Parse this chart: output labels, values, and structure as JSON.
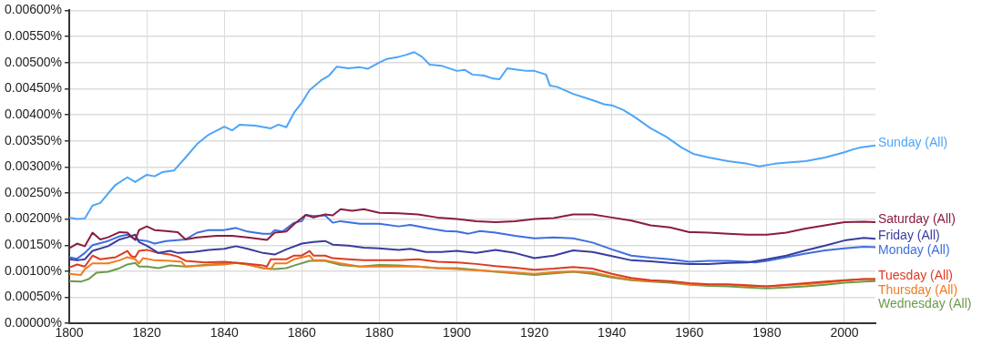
{
  "chart_data": {
    "type": "line",
    "grid": true,
    "legend": false,
    "marker": "none",
    "line_style": "solid",
    "xlim": [
      1800,
      2008
    ],
    "xticks": [
      1800,
      1820,
      1840,
      1860,
      1880,
      1900,
      1920,
      1940,
      1960,
      1980,
      2000
    ],
    "ylim": [
      0,
      0.006
    ],
    "yticks": [
      {
        "value": 0,
        "label": "0.00000%"
      },
      {
        "value": 0.0005,
        "label": "0.00050%"
      },
      {
        "value": 0.001,
        "label": "0.00100%"
      },
      {
        "value": 0.0015,
        "label": "0.00150%"
      },
      {
        "value": 0.002,
        "label": "0.00200%"
      },
      {
        "value": 0.0025,
        "label": "0.00250%"
      },
      {
        "value": 0.003,
        "label": "0.00300%"
      },
      {
        "value": 0.0035,
        "label": "0.00350%"
      },
      {
        "value": 0.004,
        "label": "0.00400%"
      },
      {
        "value": 0.0045,
        "label": "0.00450%"
      },
      {
        "value": 0.005,
        "label": "0.00500%"
      },
      {
        "value": 0.0055,
        "label": "0.00550%"
      },
      {
        "value": 0.006,
        "label": "0.00600%"
      }
    ],
    "series": [
      {
        "name": "Sunday (All)",
        "color": "#4ea5f8",
        "x": [
          1800,
          1802,
          1804,
          1806,
          1808,
          1810,
          1812,
          1815,
          1817,
          1820,
          1822,
          1824,
          1827,
          1830,
          1833,
          1836,
          1840,
          1842,
          1844,
          1848,
          1852,
          1854,
          1856,
          1858,
          1860,
          1862,
          1865,
          1867,
          1869,
          1872,
          1875,
          1877,
          1880,
          1882,
          1885,
          1887,
          1889,
          1891,
          1893,
          1896,
          1900,
          1902,
          1904,
          1907,
          1909,
          1911,
          1913,
          1915,
          1918,
          1920,
          1923,
          1924,
          1926,
          1930,
          1935,
          1938,
          1940,
          1943,
          1946,
          1950,
          1954,
          1958,
          1961,
          1965,
          1970,
          1975,
          1978,
          1982,
          1986,
          1990,
          1995,
          2000,
          2002,
          2004,
          2008
        ],
        "values": [
          0.00203,
          0.002,
          0.00201,
          0.00226,
          0.00231,
          0.00249,
          0.00266,
          0.0028,
          0.00271,
          0.00285,
          0.00282,
          0.0029,
          0.00293,
          0.00318,
          0.00344,
          0.00362,
          0.00377,
          0.0037,
          0.00381,
          0.00379,
          0.00374,
          0.00381,
          0.00376,
          0.00404,
          0.00423,
          0.00447,
          0.00466,
          0.00475,
          0.00492,
          0.00489,
          0.00491,
          0.00488,
          0.005,
          0.00507,
          0.00511,
          0.00515,
          0.0052,
          0.00511,
          0.00496,
          0.00494,
          0.00484,
          0.00486,
          0.00477,
          0.00475,
          0.0047,
          0.00468,
          0.00489,
          0.00487,
          0.00484,
          0.00484,
          0.00477,
          0.00456,
          0.00453,
          0.0044,
          0.00428,
          0.0042,
          0.00418,
          0.00409,
          0.00395,
          0.00374,
          0.00358,
          0.00337,
          0.00325,
          0.00318,
          0.00311,
          0.00306,
          0.00301,
          0.00306,
          0.00309,
          0.00311,
          0.00318,
          0.00328,
          0.00333,
          0.00337,
          0.00341
        ]
      },
      {
        "name": "Saturday (All)",
        "color": "#8a1c3e",
        "x": [
          1800,
          1802,
          1804,
          1806,
          1808,
          1810,
          1813,
          1815,
          1817,
          1818,
          1820,
          1822,
          1825,
          1828,
          1830,
          1833,
          1838,
          1842,
          1846,
          1851,
          1853,
          1856,
          1858,
          1861,
          1863,
          1866,
          1868,
          1870,
          1873,
          1876,
          1880,
          1885,
          1890,
          1895,
          1900,
          1905,
          1910,
          1915,
          1920,
          1925,
          1930,
          1935,
          1940,
          1945,
          1950,
          1955,
          1960,
          1965,
          1970,
          1975,
          1980,
          1985,
          1990,
          1995,
          2000,
          2005,
          2008
        ],
        "values": [
          0.00144,
          0.00153,
          0.00148,
          0.00174,
          0.00161,
          0.00165,
          0.00175,
          0.00174,
          0.0016,
          0.00179,
          0.00186,
          0.00179,
          0.00177,
          0.00175,
          0.00161,
          0.00165,
          0.00168,
          0.00168,
          0.00165,
          0.0016,
          0.00174,
          0.00176,
          0.0019,
          0.00208,
          0.00203,
          0.00209,
          0.00207,
          0.00219,
          0.00216,
          0.00219,
          0.00212,
          0.00211,
          0.00209,
          0.00203,
          0.002,
          0.00196,
          0.00194,
          0.00196,
          0.002,
          0.00202,
          0.00209,
          0.00209,
          0.00203,
          0.00197,
          0.00188,
          0.00184,
          0.00175,
          0.00174,
          0.00172,
          0.0017,
          0.0017,
          0.00174,
          0.00182,
          0.00188,
          0.00194,
          0.00195,
          0.00194
        ]
      },
      {
        "name": "Friday (All)",
        "color": "#3a3c9e",
        "x": [
          1800,
          1802,
          1804,
          1806,
          1810,
          1813,
          1815,
          1817,
          1818,
          1820,
          1823,
          1826,
          1828,
          1832,
          1836,
          1840,
          1843,
          1846,
          1850,
          1853,
          1856,
          1860,
          1863,
          1866,
          1868,
          1872,
          1876,
          1880,
          1885,
          1888,
          1892,
          1896,
          1900,
          1905,
          1910,
          1915,
          1920,
          1925,
          1930,
          1935,
          1940,
          1945,
          1950,
          1955,
          1960,
          1965,
          1970,
          1975,
          1980,
          1985,
          1990,
          1995,
          2000,
          2005,
          2008
        ],
        "values": [
          0.00123,
          0.00121,
          0.00123,
          0.00139,
          0.00148,
          0.00161,
          0.00165,
          0.0017,
          0.00156,
          0.00149,
          0.00135,
          0.00139,
          0.00135,
          0.00137,
          0.00141,
          0.00143,
          0.00148,
          0.00143,
          0.00135,
          0.00132,
          0.00142,
          0.00153,
          0.00156,
          0.00158,
          0.00151,
          0.00149,
          0.00145,
          0.00144,
          0.00141,
          0.00143,
          0.00137,
          0.00137,
          0.00139,
          0.00135,
          0.00141,
          0.00135,
          0.00125,
          0.0013,
          0.0014,
          0.00137,
          0.00129,
          0.00121,
          0.00119,
          0.00116,
          0.00114,
          0.00114,
          0.00116,
          0.00117,
          0.00123,
          0.0013,
          0.0014,
          0.00149,
          0.00159,
          0.00164,
          0.00162
        ]
      },
      {
        "name": "Monday (All)",
        "color": "#3c6fe0",
        "x": [
          1800,
          1802,
          1804,
          1806,
          1810,
          1813,
          1815,
          1817,
          1820,
          1822,
          1825,
          1830,
          1833,
          1836,
          1840,
          1843,
          1846,
          1850,
          1852,
          1853,
          1855,
          1858,
          1860,
          1861,
          1863,
          1866,
          1868,
          1870,
          1875,
          1880,
          1885,
          1888,
          1893,
          1897,
          1900,
          1903,
          1906,
          1910,
          1915,
          1920,
          1925,
          1930,
          1935,
          1940,
          1945,
          1950,
          1955,
          1960,
          1965,
          1970,
          1975,
          1977,
          1980,
          1985,
          1990,
          1995,
          2000,
          2005,
          2008
        ],
        "values": [
          0.00127,
          0.00124,
          0.00135,
          0.0015,
          0.00158,
          0.00167,
          0.0017,
          0.00161,
          0.00158,
          0.00153,
          0.00158,
          0.00161,
          0.00174,
          0.00179,
          0.00179,
          0.00183,
          0.00176,
          0.00172,
          0.00172,
          0.00179,
          0.00176,
          0.00193,
          0.00196,
          0.00208,
          0.00206,
          0.00207,
          0.00193,
          0.00196,
          0.00191,
          0.00191,
          0.00186,
          0.00189,
          0.00182,
          0.00177,
          0.00176,
          0.00172,
          0.00177,
          0.00174,
          0.00168,
          0.00163,
          0.00165,
          0.00163,
          0.00155,
          0.00142,
          0.0013,
          0.00126,
          0.00123,
          0.00118,
          0.0012,
          0.0012,
          0.00118,
          0.00117,
          0.0012,
          0.00127,
          0.00134,
          0.0014,
          0.00144,
          0.00147,
          0.00146
        ]
      },
      {
        "name": "Tuesday (All)",
        "color": "#dc3b20",
        "x": [
          1800,
          1802,
          1804,
          1806,
          1808,
          1812,
          1815,
          1816,
          1817,
          1818,
          1820,
          1823,
          1826,
          1828,
          1830,
          1835,
          1840,
          1845,
          1850,
          1851,
          1852,
          1856,
          1858,
          1860,
          1862,
          1863,
          1866,
          1868,
          1872,
          1876,
          1880,
          1885,
          1890,
          1895,
          1900,
          1905,
          1910,
          1915,
          1920,
          1925,
          1930,
          1935,
          1940,
          1945,
          1950,
          1955,
          1960,
          1965,
          1970,
          1975,
          1980,
          1985,
          1990,
          1995,
          2000,
          2005,
          2008
        ],
        "values": [
          0.00107,
          0.00113,
          0.00109,
          0.0013,
          0.00123,
          0.00127,
          0.00139,
          0.00129,
          0.00127,
          0.00139,
          0.00141,
          0.00135,
          0.00132,
          0.00128,
          0.0012,
          0.00117,
          0.00118,
          0.00115,
          0.00111,
          0.00109,
          0.00123,
          0.00123,
          0.0013,
          0.0013,
          0.00139,
          0.0013,
          0.0013,
          0.00125,
          0.00123,
          0.00121,
          0.00121,
          0.00121,
          0.00123,
          0.00118,
          0.00117,
          0.00114,
          0.0011,
          0.00107,
          0.00103,
          0.00105,
          0.00108,
          0.00105,
          0.00095,
          0.00087,
          0.00083,
          0.00081,
          0.00077,
          0.00075,
          0.00075,
          0.00073,
          0.00071,
          0.00074,
          0.00077,
          0.0008,
          0.00083,
          0.00085,
          0.00085
        ]
      },
      {
        "name": "Thursday (All)",
        "color": "#f07c1f",
        "x": [
          1800,
          1803,
          1804,
          1806,
          1810,
          1813,
          1815,
          1817,
          1818,
          1819,
          1822,
          1826,
          1829,
          1830,
          1835,
          1840,
          1843,
          1846,
          1850,
          1852,
          1853,
          1856,
          1858,
          1862,
          1863,
          1866,
          1870,
          1875,
          1880,
          1885,
          1890,
          1895,
          1900,
          1910,
          1920,
          1925,
          1930,
          1935,
          1940,
          1945,
          1950,
          1955,
          1960,
          1965,
          1970,
          1975,
          1980,
          1985,
          1990,
          1995,
          2000,
          2005,
          2008
        ],
        "values": [
          0.00095,
          0.00093,
          0.00104,
          0.00115,
          0.00115,
          0.00121,
          0.00127,
          0.00123,
          0.00115,
          0.00125,
          0.00121,
          0.0012,
          0.00118,
          0.00109,
          0.00111,
          0.00113,
          0.00116,
          0.00113,
          0.00106,
          0.00104,
          0.00115,
          0.00115,
          0.00123,
          0.0013,
          0.00121,
          0.00121,
          0.00115,
          0.00109,
          0.00109,
          0.00109,
          0.00109,
          0.00106,
          0.00104,
          0.001,
          0.00095,
          0.00098,
          0.001,
          0.00098,
          0.0009,
          0.00084,
          0.00081,
          0.0008,
          0.00075,
          0.00074,
          0.00074,
          0.00072,
          0.00071,
          0.00073,
          0.00075,
          0.00078,
          0.00082,
          0.00085,
          0.00085
        ]
      },
      {
        "name": "Wednesday (All)",
        "color": "#6b9b4b",
        "x": [
          1800,
          1803,
          1805,
          1807,
          1810,
          1813,
          1815,
          1817,
          1818,
          1820,
          1823,
          1826,
          1830,
          1835,
          1840,
          1843,
          1846,
          1850,
          1853,
          1856,
          1858,
          1862,
          1866,
          1870,
          1875,
          1880,
          1885,
          1890,
          1895,
          1900,
          1910,
          1920,
          1925,
          1930,
          1935,
          1940,
          1945,
          1950,
          1955,
          1960,
          1965,
          1970,
          1975,
          1980,
          1985,
          1990,
          1995,
          2000,
          2005,
          2008
        ],
        "values": [
          0.00081,
          0.0008,
          0.00085,
          0.00097,
          0.00099,
          0.00106,
          0.00113,
          0.00116,
          0.00109,
          0.00109,
          0.00106,
          0.00111,
          0.00109,
          0.00112,
          0.00115,
          0.00116,
          0.00113,
          0.00106,
          0.00104,
          0.00106,
          0.00111,
          0.0012,
          0.0012,
          0.00112,
          0.00109,
          0.00112,
          0.00111,
          0.00109,
          0.00106,
          0.00106,
          0.00099,
          0.00093,
          0.00096,
          0.00099,
          0.00095,
          0.00088,
          0.00083,
          0.0008,
          0.00078,
          0.00074,
          0.00072,
          0.00071,
          0.00069,
          0.00067,
          0.00069,
          0.00071,
          0.00074,
          0.00078,
          0.0008,
          0.00081
        ]
      }
    ]
  }
}
